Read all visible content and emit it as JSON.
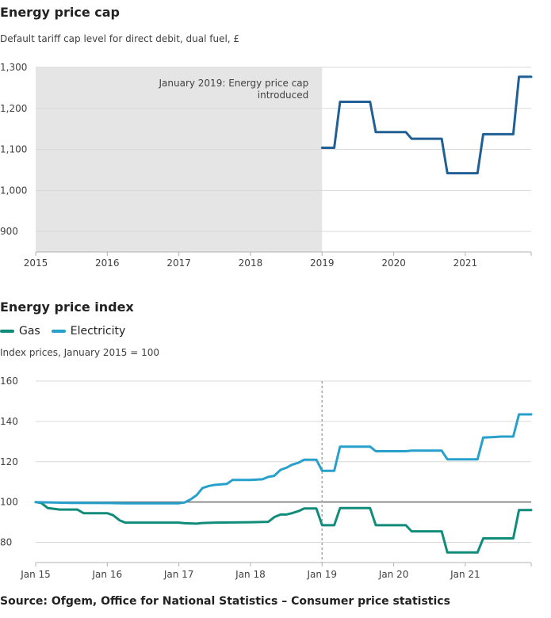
{
  "charts": {
    "cap": {
      "title": "Energy price cap",
      "subtitle": "Default tariff cap level for direct debit, dual fuel, £",
      "annotation_line1": "January 2019: Energy price cap",
      "annotation_line2": "introduced"
    },
    "index": {
      "title": "Energy price index",
      "subtitle": "Index prices, January 2015 = 100"
    }
  },
  "legend": [
    {
      "name": "Gas",
      "color": "#118c7b"
    },
    {
      "name": "Electricity",
      "color": "#27a0cc"
    }
  ],
  "source": "Source: Ofgem, Office for National Statistics – Consumer price statistics",
  "colors": {
    "cap_line": "#206095",
    "gas": "#118c7b",
    "electricity": "#27a0cc",
    "shade": "#e5e5e5"
  },
  "chart_data": [
    {
      "type": "line",
      "title": "Energy price cap",
      "subtitle": "Default tariff cap level for direct debit, dual fuel, £",
      "xlabel": "",
      "ylabel": "",
      "xlim": [
        2015,
        2021.92
      ],
      "ylim": [
        850,
        1300
      ],
      "yticks": [
        900,
        1000,
        1100,
        1200,
        1300
      ],
      "ytick_labels": [
        "900",
        "1,000",
        "1,100",
        "1,200",
        "1,300"
      ],
      "xticks": [
        2015,
        2016,
        2017,
        2018,
        2019,
        2020,
        2021
      ],
      "xtick_labels": [
        "2015",
        "2016",
        "2017",
        "2018",
        "2019",
        "2020",
        "2021"
      ],
      "shaded_region": [
        2015,
        2019
      ],
      "annotation": "January 2019: Energy price cap introduced",
      "series": [
        {
          "name": "Default tariff cap",
          "x": [
            2019.0,
            2019.17,
            2019.25,
            2019.67,
            2019.75,
            2020.17,
            2020.25,
            2020.67,
            2020.75,
            2021.17,
            2021.25,
            2021.67,
            2021.75,
            2021.92
          ],
          "values": [
            1104,
            1104,
            1216,
            1216,
            1142,
            1142,
            1126,
            1126,
            1042,
            1042,
            1137,
            1137,
            1277,
            1277
          ]
        }
      ]
    },
    {
      "type": "line",
      "title": "Energy price index",
      "subtitle": "Index prices, January 2015 = 100",
      "xlabel": "",
      "ylabel": "",
      "xlim": [
        2015.0,
        2021.92
      ],
      "ylim": [
        70,
        160
      ],
      "yticks": [
        80,
        100,
        120,
        140,
        160
      ],
      "ytick_labels": [
        "80",
        "100",
        "120",
        "140",
        "160"
      ],
      "xticks": [
        2015,
        2016,
        2017,
        2018,
        2019,
        2020,
        2021
      ],
      "xtick_labels": [
        "Jan 15",
        "Jan 16",
        "Jan 17",
        "Jan 18",
        "Jan 19",
        "Jan 20",
        "Jan 21"
      ],
      "reference_line": 100,
      "marker_line": 2019,
      "series": [
        {
          "name": "Gas",
          "x": [
            2015.0,
            2015.08,
            2015.17,
            2015.25,
            2015.33,
            2015.5,
            2015.58,
            2015.67,
            2016.0,
            2016.08,
            2016.17,
            2016.25,
            2016.5,
            2017.0,
            2017.08,
            2017.25,
            2017.33,
            2017.5,
            2018.0,
            2018.25,
            2018.33,
            2018.42,
            2018.5,
            2018.58,
            2018.67,
            2018.75,
            2018.92,
            2019.0,
            2019.17,
            2019.25,
            2019.67,
            2019.75,
            2020.17,
            2020.25,
            2020.67,
            2020.75,
            2021.17,
            2021.25,
            2021.67,
            2021.75,
            2021.92
          ],
          "values": [
            100,
            99.5,
            97,
            96.7,
            96.3,
            96.3,
            96.3,
            94.5,
            94.5,
            93.5,
            91,
            89.8,
            89.8,
            89.8,
            89.5,
            89.3,
            89.6,
            89.8,
            90,
            90.2,
            92.5,
            93.8,
            93.8,
            94.5,
            95.5,
            96.8,
            96.8,
            88.5,
            88.5,
            97,
            97,
            88.5,
            88.5,
            85.5,
            85.5,
            75,
            75,
            82,
            82,
            96,
            96
          ]
        },
        {
          "name": "Electricity",
          "x": [
            2015.0,
            2015.25,
            2015.5,
            2016.0,
            2016.25,
            2016.5,
            2017.0,
            2017.08,
            2017.17,
            2017.25,
            2017.33,
            2017.42,
            2017.5,
            2017.67,
            2017.75,
            2018.0,
            2018.17,
            2018.25,
            2018.33,
            2018.42,
            2018.5,
            2018.58,
            2018.67,
            2018.75,
            2018.92,
            2019.0,
            2019.17,
            2019.25,
            2019.67,
            2019.75,
            2020.0,
            2020.17,
            2020.25,
            2020.67,
            2020.75,
            2021.17,
            2021.25,
            2021.42,
            2021.5,
            2021.67,
            2021.75,
            2021.92
          ],
          "values": [
            100,
            99.8,
            99.6,
            99.5,
            99.4,
            99.4,
            99.4,
            99.8,
            101.5,
            103.5,
            107,
            108,
            108.5,
            109,
            111,
            111,
            111.3,
            112.5,
            113,
            116,
            117,
            118.5,
            119.5,
            121,
            121,
            115.5,
            115.5,
            127.5,
            127.5,
            125.2,
            125.2,
            125.2,
            125.5,
            125.5,
            121.2,
            121.2,
            132,
            132.3,
            132.5,
            132.5,
            143.5,
            143.5
          ]
        }
      ]
    }
  ]
}
